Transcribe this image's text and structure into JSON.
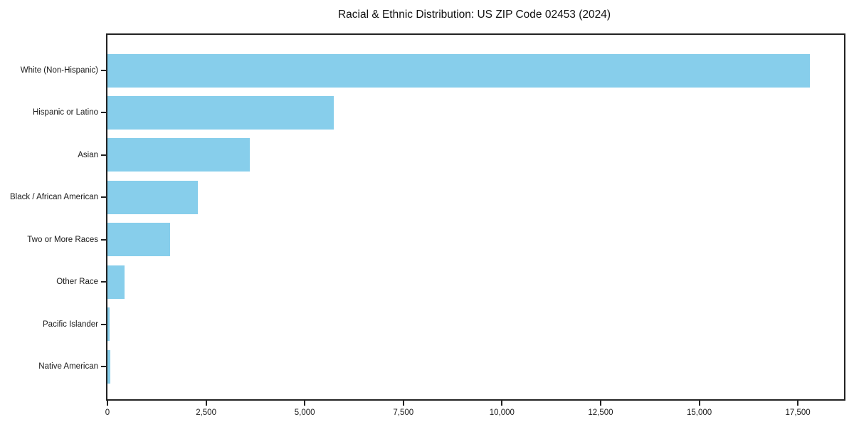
{
  "title": "Racial & Ethnic Distribution: US ZIP Code 02453 (2024)",
  "colors": {
    "bar": "#87CEEB",
    "axis": "#222222",
    "text": "#1a1a1a",
    "background": "#ffffff"
  },
  "chart_data": {
    "type": "bar",
    "orientation": "horizontal",
    "title": "Racial & Ethnic Distribution: US ZIP Code 02453 (2024)",
    "categories": [
      "White (Non-Hispanic)",
      "Hispanic or Latino",
      "Asian",
      "Black / African American",
      "Two or More Races",
      "Other Race",
      "Pacific Islander",
      "Native American"
    ],
    "values": [
      17800,
      5730,
      3600,
      2290,
      1580,
      430,
      60,
      70
    ],
    "xlabel": "",
    "ylabel": "",
    "xlim": [
      0,
      18670
    ],
    "x_ticks": [
      0,
      2500,
      5000,
      7500,
      10000,
      12500,
      15000,
      17500
    ],
    "x_tick_labels": [
      "0",
      "2,500",
      "5,000",
      "7,500",
      "10,000",
      "12,500",
      "15,000",
      "17,500"
    ],
    "grid": false,
    "legend": null,
    "bar_color": "#87CEEB",
    "value_order": "descending_top_to_bottom"
  }
}
